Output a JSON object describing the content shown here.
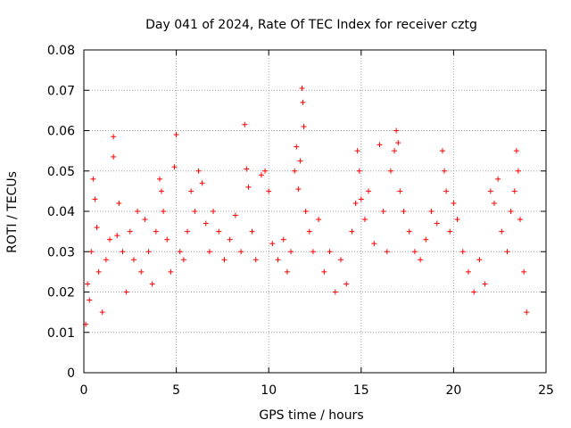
{
  "chart_data": {
    "type": "scatter",
    "title": "Day 041 of 2024, Rate Of TEC Index for receiver cztg",
    "xlabel": "GPS time / hours",
    "ylabel": "ROTI / TECUs",
    "xlim": [
      0,
      25
    ],
    "ylim": [
      0,
      0.08
    ],
    "x_ticks": [
      "0",
      "5",
      "10",
      "15",
      "20",
      "25"
    ],
    "y_ticks": [
      "0",
      "0.01",
      "0.02",
      "0.03",
      "0.04",
      "0.05",
      "0.06",
      "0.07",
      "0.08"
    ],
    "grid": true,
    "marker": "+",
    "color": "#ff0000",
    "series": [
      {
        "name": "ROTI",
        "points": [
          [
            0.1,
            0.012
          ],
          [
            0.2,
            0.022
          ],
          [
            0.3,
            0.018
          ],
          [
            0.4,
            0.03
          ],
          [
            0.5,
            0.048
          ],
          [
            0.6,
            0.043
          ],
          [
            0.7,
            0.036
          ],
          [
            0.8,
            0.025
          ],
          [
            1.0,
            0.015
          ],
          [
            1.2,
            0.028
          ],
          [
            1.4,
            0.033
          ],
          [
            1.6,
            0.0585
          ],
          [
            1.6,
            0.0535
          ],
          [
            1.8,
            0.034
          ],
          [
            1.9,
            0.042
          ],
          [
            2.1,
            0.03
          ],
          [
            2.3,
            0.02
          ],
          [
            2.5,
            0.035
          ],
          [
            2.7,
            0.028
          ],
          [
            2.9,
            0.04
          ],
          [
            3.1,
            0.025
          ],
          [
            3.3,
            0.038
          ],
          [
            3.5,
            0.03
          ],
          [
            3.7,
            0.022
          ],
          [
            3.9,
            0.035
          ],
          [
            4.1,
            0.048
          ],
          [
            4.2,
            0.045
          ],
          [
            4.3,
            0.04
          ],
          [
            4.5,
            0.033
          ],
          [
            4.7,
            0.025
          ],
          [
            4.9,
            0.051
          ],
          [
            5.0,
            0.059
          ],
          [
            5.2,
            0.03
          ],
          [
            5.4,
            0.028
          ],
          [
            5.6,
            0.035
          ],
          [
            5.8,
            0.045
          ],
          [
            6.0,
            0.04
          ],
          [
            6.2,
            0.05
          ],
          [
            6.4,
            0.047
          ],
          [
            6.6,
            0.037
          ],
          [
            6.8,
            0.03
          ],
          [
            7.0,
            0.04
          ],
          [
            7.3,
            0.035
          ],
          [
            7.6,
            0.028
          ],
          [
            7.9,
            0.033
          ],
          [
            8.2,
            0.039
          ],
          [
            8.5,
            0.03
          ],
          [
            8.7,
            0.0615
          ],
          [
            8.8,
            0.0505
          ],
          [
            8.9,
            0.046
          ],
          [
            9.1,
            0.035
          ],
          [
            9.3,
            0.028
          ],
          [
            9.6,
            0.049
          ],
          [
            9.8,
            0.05
          ],
          [
            10.0,
            0.045
          ],
          [
            10.2,
            0.032
          ],
          [
            10.5,
            0.028
          ],
          [
            10.8,
            0.033
          ],
          [
            11.0,
            0.025
          ],
          [
            11.2,
            0.03
          ],
          [
            11.4,
            0.05
          ],
          [
            11.5,
            0.056
          ],
          [
            11.6,
            0.0455
          ],
          [
            11.7,
            0.0525
          ],
          [
            11.8,
            0.0705
          ],
          [
            11.85,
            0.067
          ],
          [
            11.9,
            0.061
          ],
          [
            12.0,
            0.04
          ],
          [
            12.2,
            0.035
          ],
          [
            12.4,
            0.03
          ],
          [
            12.7,
            0.038
          ],
          [
            13.0,
            0.025
          ],
          [
            13.3,
            0.03
          ],
          [
            13.6,
            0.02
          ],
          [
            13.9,
            0.028
          ],
          [
            14.2,
            0.022
          ],
          [
            14.5,
            0.035
          ],
          [
            14.7,
            0.042
          ],
          [
            14.8,
            0.055
          ],
          [
            14.9,
            0.05
          ],
          [
            15.0,
            0.043
          ],
          [
            15.2,
            0.038
          ],
          [
            15.4,
            0.045
          ],
          [
            15.7,
            0.032
          ],
          [
            16.0,
            0.0565
          ],
          [
            16.2,
            0.04
          ],
          [
            16.4,
            0.03
          ],
          [
            16.6,
            0.05
          ],
          [
            16.8,
            0.055
          ],
          [
            16.9,
            0.06
          ],
          [
            17.0,
            0.057
          ],
          [
            17.1,
            0.045
          ],
          [
            17.3,
            0.04
          ],
          [
            17.6,
            0.035
          ],
          [
            17.9,
            0.03
          ],
          [
            18.2,
            0.028
          ],
          [
            18.5,
            0.033
          ],
          [
            18.8,
            0.04
          ],
          [
            19.1,
            0.037
          ],
          [
            19.4,
            0.055
          ],
          [
            19.5,
            0.05
          ],
          [
            19.6,
            0.045
          ],
          [
            19.8,
            0.035
          ],
          [
            20.0,
            0.042
          ],
          [
            20.2,
            0.038
          ],
          [
            20.5,
            0.03
          ],
          [
            20.8,
            0.025
          ],
          [
            21.1,
            0.02
          ],
          [
            21.4,
            0.028
          ],
          [
            21.7,
            0.022
          ],
          [
            22.0,
            0.045
          ],
          [
            22.2,
            0.042
          ],
          [
            22.4,
            0.048
          ],
          [
            22.6,
            0.035
          ],
          [
            22.9,
            0.03
          ],
          [
            23.1,
            0.04
          ],
          [
            23.3,
            0.045
          ],
          [
            23.4,
            0.055
          ],
          [
            23.5,
            0.05
          ],
          [
            23.6,
            0.038
          ],
          [
            23.8,
            0.025
          ],
          [
            23.95,
            0.015
          ]
        ]
      }
    ]
  }
}
